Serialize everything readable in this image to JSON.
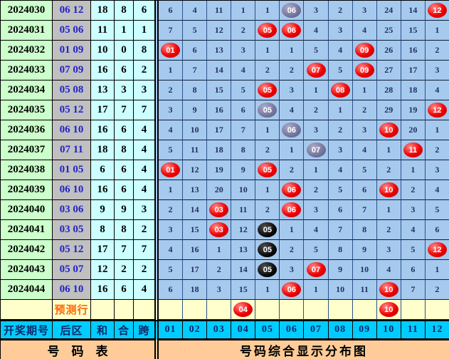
{
  "page_title": "号码综合显示分布图",
  "colors": {
    "ball_red": "#e60000",
    "ball_gray": "#74749c",
    "ball_black": "#000000",
    "chart_cell_bg": "#a6c9ee",
    "period_col_bg": "#ccffcc",
    "back_col_bg": "#c0c0c0",
    "stat_col_bg": "#ccffff",
    "prediction_row_bg": "#ffffcc",
    "header_row_bg": "#00ccff",
    "footer_bg": "#ffcc99",
    "back_number_color": "#2323c8",
    "prediction_label_color": "#ff6600"
  },
  "header": {
    "period": "开奖期号",
    "back": "后区",
    "sum": "和",
    "tail": "合",
    "span": "跨"
  },
  "prediction": {
    "label": "预测行"
  },
  "footer": {
    "left": "号　码　表",
    "right": "号码综合显示分布图"
  },
  "chart_data": {
    "type": "table",
    "title": "号码综合显示分布图",
    "number_columns": [
      "01",
      "02",
      "03",
      "04",
      "05",
      "06",
      "07",
      "08",
      "09",
      "10",
      "11",
      "12"
    ],
    "rows": [
      {
        "period": "2024030",
        "back": "06 12",
        "sum": "18",
        "tail": "8",
        "span": "6",
        "cells": [
          "6",
          "4",
          "11",
          "1",
          "1",
          {
            "ball": "06",
            "color": "gray"
          },
          "3",
          "2",
          "3",
          "24",
          "14",
          {
            "ball": "12",
            "color": "red"
          }
        ]
      },
      {
        "period": "2024031",
        "back": "05 06",
        "sum": "11",
        "tail": "1",
        "span": "1",
        "cells": [
          "7",
          "5",
          "12",
          "2",
          {
            "ball": "05",
            "color": "red"
          },
          {
            "ball": "06",
            "color": "red"
          },
          "4",
          "3",
          "4",
          "25",
          "15",
          "1"
        ]
      },
      {
        "period": "2024032",
        "back": "01 09",
        "sum": "10",
        "tail": "0",
        "span": "8",
        "cells": [
          {
            "ball": "01",
            "color": "red"
          },
          "6",
          "13",
          "3",
          "1",
          "1",
          "5",
          "4",
          {
            "ball": "09",
            "color": "red"
          },
          "26",
          "16",
          "2"
        ]
      },
      {
        "period": "2024033",
        "back": "07 09",
        "sum": "16",
        "tail": "6",
        "span": "2",
        "cells": [
          "1",
          "7",
          "14",
          "4",
          "2",
          "2",
          {
            "ball": "07",
            "color": "red"
          },
          "5",
          {
            "ball": "09",
            "color": "red"
          },
          "27",
          "17",
          "3"
        ]
      },
      {
        "period": "2024034",
        "back": "05 08",
        "sum": "13",
        "tail": "3",
        "span": "3",
        "cells": [
          "2",
          "8",
          "15",
          "5",
          {
            "ball": "05",
            "color": "red"
          },
          "3",
          "1",
          {
            "ball": "08",
            "color": "red"
          },
          "1",
          "28",
          "18",
          "4"
        ]
      },
      {
        "period": "2024035",
        "back": "05 12",
        "sum": "17",
        "tail": "7",
        "span": "7",
        "cells": [
          "3",
          "9",
          "16",
          "6",
          {
            "ball": "05",
            "color": "gray"
          },
          "4",
          "2",
          "1",
          "2",
          "29",
          "19",
          {
            "ball": "12",
            "color": "red"
          }
        ]
      },
      {
        "period": "2024036",
        "back": "06 10",
        "sum": "16",
        "tail": "6",
        "span": "4",
        "cells": [
          "4",
          "10",
          "17",
          "7",
          "1",
          {
            "ball": "06",
            "color": "gray"
          },
          "3",
          "2",
          "3",
          {
            "ball": "10",
            "color": "red"
          },
          "20",
          "1"
        ]
      },
      {
        "period": "2024037",
        "back": "07 11",
        "sum": "18",
        "tail": "8",
        "span": "4",
        "cells": [
          "5",
          "11",
          "18",
          "8",
          "2",
          "1",
          {
            "ball": "07",
            "color": "gray"
          },
          "3",
          "4",
          "1",
          {
            "ball": "11",
            "color": "red"
          },
          "2"
        ]
      },
      {
        "period": "2024038",
        "back": "01 05",
        "sum": "6",
        "tail": "6",
        "span": "4",
        "cells": [
          {
            "ball": "01",
            "color": "red"
          },
          "12",
          "19",
          "9",
          {
            "ball": "05",
            "color": "red"
          },
          "2",
          "1",
          "4",
          "5",
          "2",
          "1",
          "3"
        ]
      },
      {
        "period": "2024039",
        "back": "06 10",
        "sum": "16",
        "tail": "6",
        "span": "4",
        "cells": [
          "1",
          "13",
          "20",
          "10",
          "1",
          {
            "ball": "06",
            "color": "red"
          },
          "2",
          "5",
          "6",
          {
            "ball": "10",
            "color": "red"
          },
          "2",
          "4"
        ]
      },
      {
        "period": "2024040",
        "back": "03 06",
        "sum": "9",
        "tail": "9",
        "span": "3",
        "cells": [
          "2",
          "14",
          {
            "ball": "03",
            "color": "red"
          },
          "11",
          "2",
          {
            "ball": "06",
            "color": "red"
          },
          "3",
          "6",
          "7",
          "1",
          "3",
          "5"
        ]
      },
      {
        "period": "2024041",
        "back": "03 05",
        "sum": "8",
        "tail": "8",
        "span": "2",
        "cells": [
          "3",
          "15",
          {
            "ball": "03",
            "color": "red"
          },
          "12",
          {
            "ball": "05",
            "color": "black"
          },
          "1",
          "4",
          "7",
          "8",
          "2",
          "4",
          "6"
        ]
      },
      {
        "period": "2024042",
        "back": "05 12",
        "sum": "17",
        "tail": "7",
        "span": "7",
        "cells": [
          "4",
          "16",
          "1",
          "13",
          {
            "ball": "05",
            "color": "black"
          },
          "2",
          "5",
          "8",
          "9",
          "3",
          "5",
          {
            "ball": "12",
            "color": "red"
          }
        ]
      },
      {
        "period": "2024043",
        "back": "05 07",
        "sum": "12",
        "tail": "2",
        "span": "2",
        "cells": [
          "5",
          "17",
          "2",
          "14",
          {
            "ball": "05",
            "color": "black"
          },
          "3",
          {
            "ball": "07",
            "color": "red"
          },
          "9",
          "10",
          "4",
          "6",
          "1"
        ]
      },
      {
        "period": "2024044",
        "back": "06 10",
        "sum": "16",
        "tail": "6",
        "span": "4",
        "cells": [
          "6",
          "18",
          "3",
          "15",
          "1",
          {
            "ball": "06",
            "color": "red"
          },
          "1",
          "10",
          "11",
          {
            "ball": "10",
            "color": "red"
          },
          "7",
          "2"
        ]
      }
    ],
    "prediction_cells": [
      null,
      null,
      null,
      {
        "ball": "04",
        "color": "red"
      },
      null,
      null,
      null,
      null,
      null,
      {
        "ball": "10",
        "color": "red"
      },
      null,
      null
    ]
  }
}
